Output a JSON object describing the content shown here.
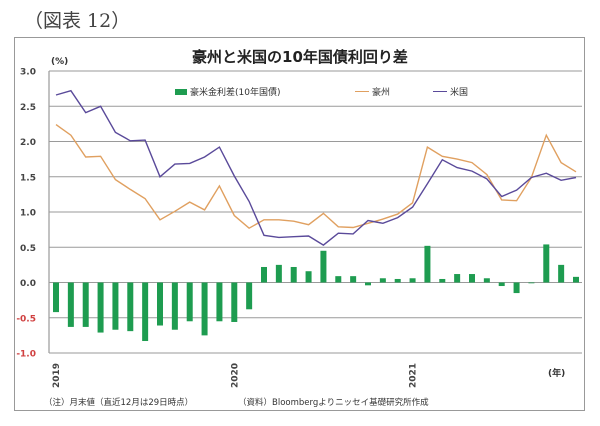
{
  "figure_label": "（図表 12）",
  "chart_data": {
    "type": "bar+line",
    "title": "豪州と米国の10年国債利回り差",
    "ylabel": "(%)",
    "xlabel": "(年)",
    "ylim": [
      -1.0,
      3.0
    ],
    "yticks": [
      "3.0",
      "2.5",
      "2.0",
      "1.5",
      "1.0",
      "0.5",
      "0.0",
      "-0.5",
      "-1.0"
    ],
    "x_tick_labels": [
      "2019",
      "2020",
      "2021"
    ],
    "grid": true,
    "legend_position": "top-center",
    "x": [
      "2019-01",
      "2019-02",
      "2019-03",
      "2019-04",
      "2019-05",
      "2019-06",
      "2019-07",
      "2019-08",
      "2019-09",
      "2019-10",
      "2019-11",
      "2019-12",
      "2020-01",
      "2020-02",
      "2020-03",
      "2020-04",
      "2020-05",
      "2020-06",
      "2020-07",
      "2020-08",
      "2020-09",
      "2020-10",
      "2020-11",
      "2020-12",
      "2021-01",
      "2021-02",
      "2021-03",
      "2021-04",
      "2021-05",
      "2021-06",
      "2021-07",
      "2021-08",
      "2021-09",
      "2021-10",
      "2021-11",
      "2021-12"
    ],
    "series": [
      {
        "name": "豪米金利差(10年国債)",
        "kind": "bar",
        "color": "#1e9c50",
        "values": [
          -0.42,
          -0.63,
          -0.63,
          -0.71,
          -0.67,
          -0.69,
          -0.83,
          -0.61,
          -0.67,
          -0.55,
          -0.75,
          -0.55,
          -0.56,
          -0.38,
          0.22,
          0.25,
          0.22,
          0.16,
          0.45,
          0.09,
          0.09,
          -0.04,
          0.06,
          0.05,
          0.06,
          0.52,
          0.05,
          0.12,
          0.12,
          0.06,
          -0.05,
          -0.15,
          0.0,
          0.54,
          0.25,
          0.08
        ]
      },
      {
        "name": "豪州",
        "kind": "line",
        "color": "#e0a060",
        "values": [
          2.24,
          2.09,
          1.78,
          1.79,
          1.46,
          1.32,
          1.19,
          0.89,
          1.01,
          1.14,
          1.03,
          1.37,
          0.95,
          0.77,
          0.89,
          0.89,
          0.87,
          0.82,
          0.98,
          0.79,
          0.78,
          0.84,
          0.9,
          0.97,
          1.13,
          1.92,
          1.79,
          1.75,
          1.7,
          1.53,
          1.17,
          1.16,
          1.49,
          2.09,
          1.7,
          1.57
        ]
      },
      {
        "name": "米国",
        "kind": "line",
        "color": "#5a4a9a",
        "values": [
          2.66,
          2.72,
          2.41,
          2.5,
          2.13,
          2.01,
          2.02,
          1.5,
          1.68,
          1.69,
          1.78,
          1.92,
          1.51,
          1.15,
          0.67,
          0.64,
          0.65,
          0.66,
          0.53,
          0.7,
          0.69,
          0.88,
          0.84,
          0.92,
          1.07,
          1.4,
          1.74,
          1.63,
          1.58,
          1.47,
          1.22,
          1.31,
          1.49,
          1.55,
          1.45,
          1.49
        ]
      }
    ]
  },
  "legend": {
    "spread": "豪米金利差(10年国債)",
    "australia": "豪州",
    "us": "米国"
  },
  "footnote": "（注）月末値（直近12月は29日時点）",
  "source": "（資料）Bloombergよりニッセイ基礎研究所作成",
  "colors": {
    "bar": "#1e9c50",
    "australia": "#e0a060",
    "us": "#5a4a9a",
    "grid": "#9a9a9a",
    "negative_tick": "#d04040"
  }
}
